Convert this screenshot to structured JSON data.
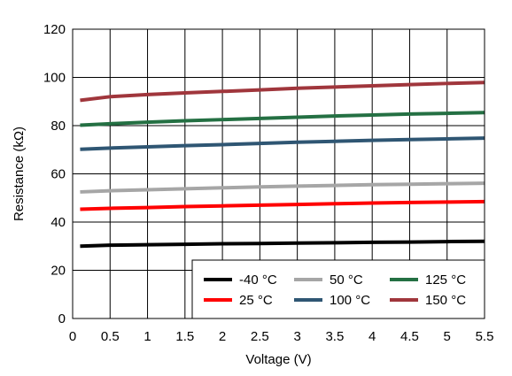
{
  "chart_data": {
    "type": "line",
    "title": "",
    "xlabel": "Voltage (V)",
    "ylabel": "Resistance (kΩ)",
    "xlim": [
      0,
      5.5
    ],
    "ylim": [
      0,
      120
    ],
    "xticks": [
      0,
      0.5,
      1,
      1.5,
      2,
      2.5,
      3,
      3.5,
      4,
      4.5,
      5,
      5.5
    ],
    "xtick_labels": [
      "0",
      "0.5",
      "1",
      "1.5",
      "2",
      "2.5",
      "3",
      "3.5",
      "4",
      "4.5",
      "5",
      "5.5"
    ],
    "yticks": [
      0,
      20,
      40,
      60,
      80,
      100,
      120
    ],
    "ytick_labels": [
      "0",
      "20",
      "40",
      "60",
      "80",
      "100",
      "120"
    ],
    "grid": true,
    "legend_position": "bottom-right",
    "x": [
      0.1,
      0.5,
      1,
      1.5,
      2,
      2.5,
      3,
      3.5,
      4,
      4.5,
      5,
      5.5
    ],
    "series": [
      {
        "name": "-40 °C",
        "color": "#000000",
        "values": [
          30.0,
          30.4,
          30.6,
          30.8,
          31.0,
          31.1,
          31.3,
          31.4,
          31.6,
          31.7,
          31.9,
          32.0
        ]
      },
      {
        "name": "25 °C",
        "color": "#ff0000",
        "values": [
          45.3,
          45.7,
          46.0,
          46.4,
          46.7,
          47.0,
          47.3,
          47.6,
          47.9,
          48.1,
          48.3,
          48.5
        ]
      },
      {
        "name": "50 °C",
        "color": "#a6a6a6",
        "values": [
          52.5,
          53.0,
          53.4,
          53.8,
          54.2,
          54.6,
          54.9,
          55.2,
          55.5,
          55.7,
          55.9,
          56.1
        ]
      },
      {
        "name": "100 °C",
        "color": "#2f5673",
        "values": [
          70.2,
          70.7,
          71.2,
          71.7,
          72.1,
          72.6,
          73.1,
          73.5,
          73.9,
          74.2,
          74.5,
          74.8
        ]
      },
      {
        "name": "125 °C",
        "color": "#247043",
        "values": [
          80.2,
          80.8,
          81.4,
          82.0,
          82.5,
          83.0,
          83.5,
          84.0,
          84.4,
          84.8,
          85.1,
          85.4
        ]
      },
      {
        "name": "150 °C",
        "color": "#a0363c",
        "values": [
          90.5,
          92.0,
          92.9,
          93.6,
          94.2,
          94.8,
          95.5,
          96.0,
          96.5,
          97.0,
          97.5,
          97.9
        ]
      }
    ],
    "legend_order": [
      0,
      2,
      4,
      1,
      3,
      5
    ]
  }
}
